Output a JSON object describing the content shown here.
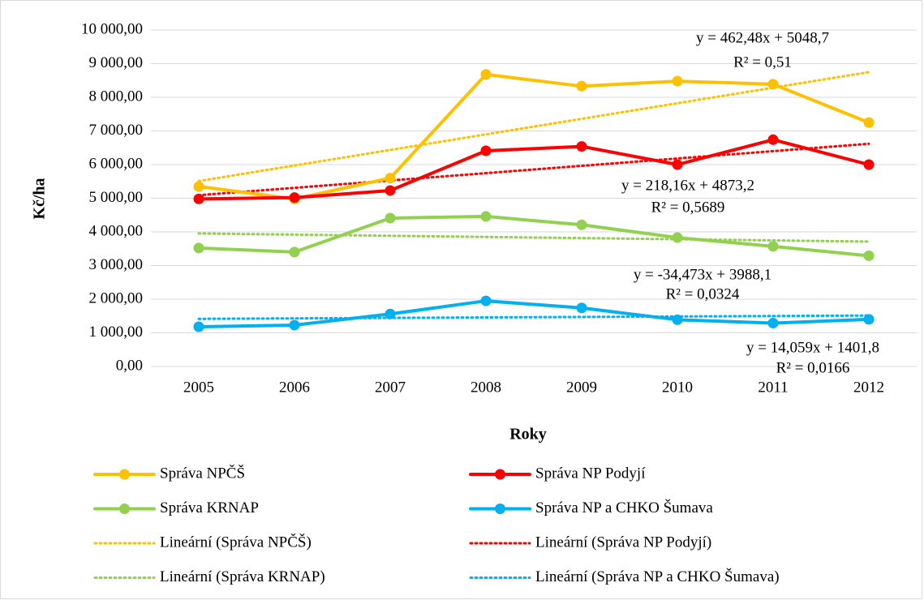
{
  "chart_data": {
    "type": "line",
    "y_label": "Kč/ha",
    "x_label": "Roky",
    "categories": [
      "2005",
      "2006",
      "2007",
      "2008",
      "2009",
      "2010",
      "2011",
      "2012"
    ],
    "ylim": [
      0,
      10000
    ],
    "yticks": [
      {
        "value": 0,
        "label": "0,00"
      },
      {
        "value": 1000,
        "label": "1 000,00"
      },
      {
        "value": 2000,
        "label": "2 000,00"
      },
      {
        "value": 3000,
        "label": "3 000,00"
      },
      {
        "value": 4000,
        "label": "4 000,00"
      },
      {
        "value": 5000,
        "label": "5 000,00"
      },
      {
        "value": 6000,
        "label": "6 000,00"
      },
      {
        "value": 7000,
        "label": "7 000,00"
      },
      {
        "value": 8000,
        "label": "8 000,00"
      },
      {
        "value": 9000,
        "label": "9 000,00"
      },
      {
        "value": 10000,
        "label": "10 000,00"
      }
    ],
    "grid": true,
    "legend": "bottom",
    "series": [
      {
        "name": "Správa NPČŠ",
        "color": "#ffc000",
        "style": "solid",
        "values": [
          5350,
          4980,
          5600,
          8680,
          8330,
          8480,
          8390,
          7250
        ]
      },
      {
        "name": "Správa NP Podyjí",
        "color": "#ff0000",
        "style": "solid",
        "values": [
          4980,
          5020,
          5230,
          6410,
          6540,
          6000,
          6740,
          6000
        ]
      },
      {
        "name": "Správa KRNAP",
        "color": "#92d050",
        "style": "solid",
        "values": [
          3520,
          3400,
          4410,
          4460,
          4210,
          3830,
          3570,
          3290
        ]
      },
      {
        "name": "Správa NP a CHKO Šumava",
        "color": "#00b0f0",
        "style": "solid",
        "values": [
          1180,
          1230,
          1560,
          1950,
          1740,
          1390,
          1290,
          1400
        ]
      },
      {
        "name": "Lineární (Správa NPČŠ)",
        "color": "#ffc000",
        "style": "dotted",
        "values": [
          5511.2,
          5973.7,
          6436.1,
          6898.6,
          7361.1,
          7823.6,
          8286.1,
          8748.5
        ]
      },
      {
        "name": "Lineární (Správa NP Podyjí)",
        "color": "#ff0000",
        "style": "dotted",
        "values": [
          5091.4,
          5309.5,
          5527.7,
          5745.8,
          5964.0,
          6182.2,
          6400.3,
          6618.5
        ]
      },
      {
        "name": "Lineární (Správa KRNAP)",
        "color": "#92d050",
        "style": "dotted",
        "values": [
          3953.6,
          3919.2,
          3884.7,
          3850.2,
          3815.7,
          3781.3,
          3746.8,
          3712.3
        ]
      },
      {
        "name": "Lineární (Správa NP a CHKO Šumava)",
        "color": "#00b0f0",
        "style": "dotted",
        "values": [
          1415.9,
          1429.9,
          1444.0,
          1458.0,
          1472.1,
          1486.2,
          1500.2,
          1514.3
        ]
      }
    ],
    "annotations": [
      [
        "y = 462,48x + 5048,7",
        "R² = 0,51"
      ],
      [
        "y = 218,16x + 4873,2",
        "R² = 0,5689"
      ],
      [
        "y = -34,473x + 3988,1",
        "R² = 0,0324"
      ],
      [
        "y = 14,059x + 1401,8",
        "R² = 0,0166"
      ]
    ]
  }
}
